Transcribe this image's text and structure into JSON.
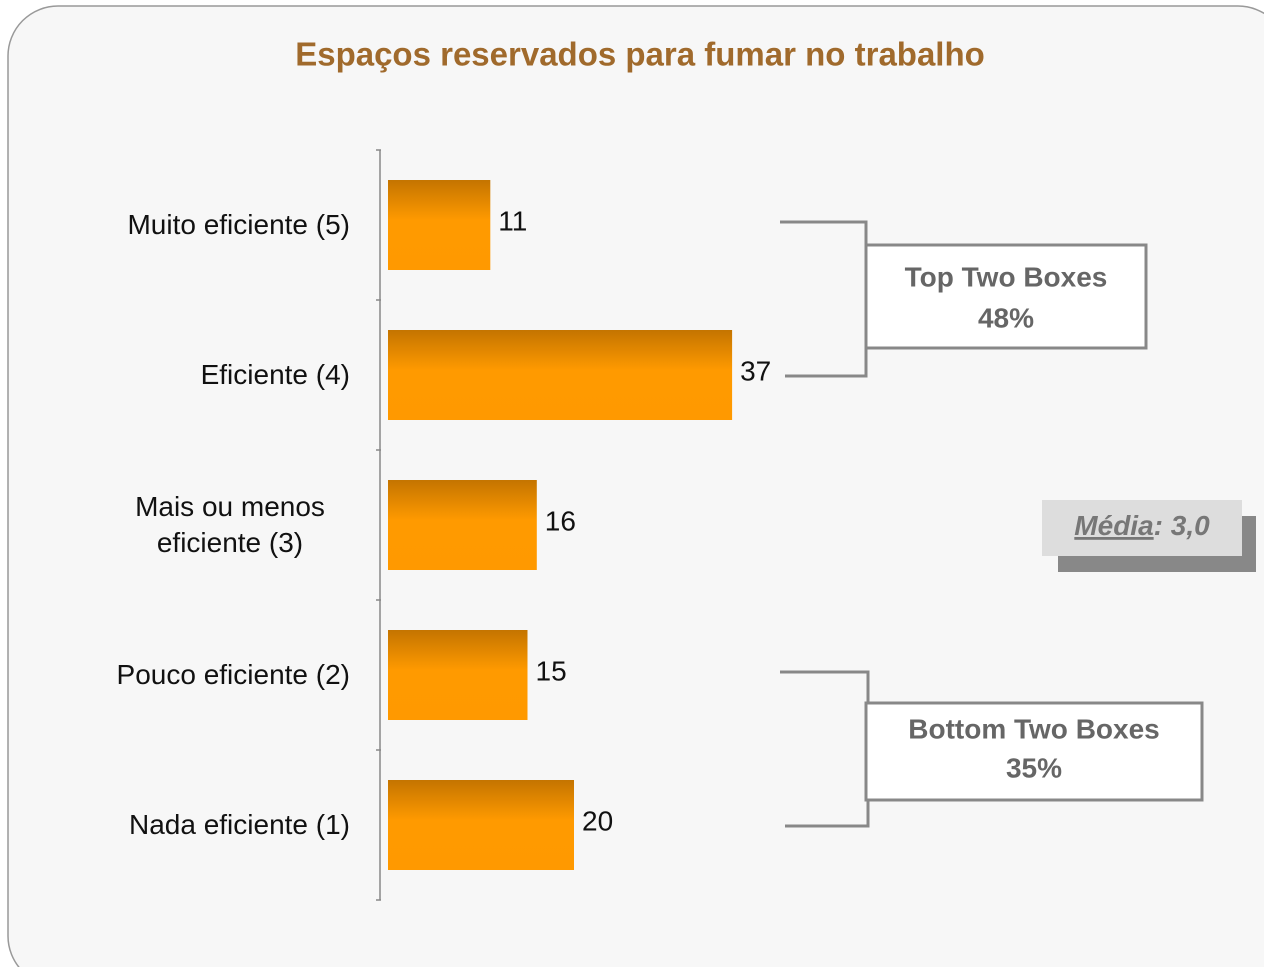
{
  "chart_data": {
    "type": "bar",
    "orientation": "horizontal",
    "title": "Espaços reservados para fumar no trabalho",
    "categories": [
      "Muito eficiente (5)",
      "Eficiente (4)",
      "Mais ou menos eficiente (3)",
      "Pouco eficiente (2)",
      "Nada eficiente (1)"
    ],
    "values": [
      11,
      37,
      16,
      15,
      20
    ],
    "color": "#ff9900",
    "annotations": {
      "top": {
        "title": "Top Two Boxes",
        "value": "48%"
      },
      "bottom": {
        "title": "Bottom Two Boxes",
        "value": "35%"
      },
      "mean": {
        "label": "Média",
        "value": ": 3,0"
      }
    }
  }
}
